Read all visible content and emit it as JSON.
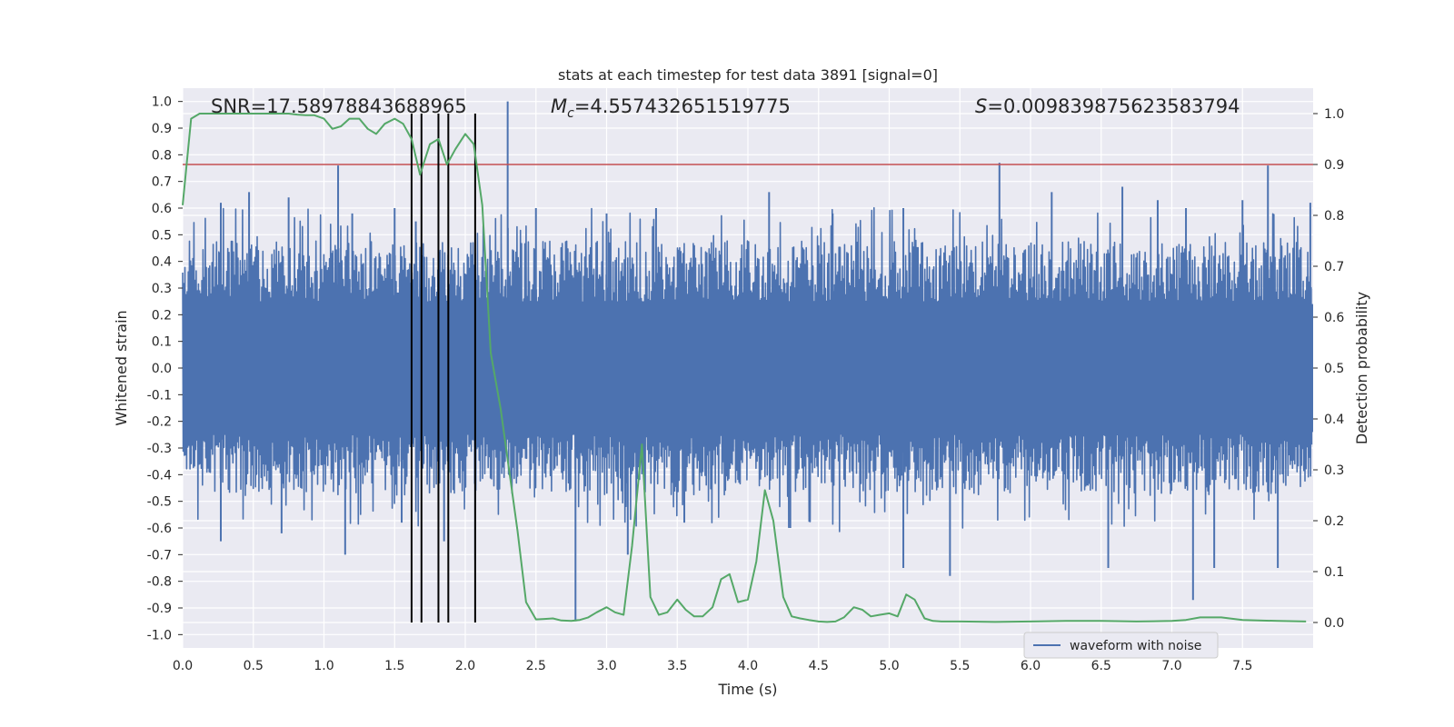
{
  "chart_data": {
    "type": "line",
    "title": "stats at each timestep for test data 3891 [signal=0]",
    "xlabel": "Time (s)",
    "ylabel": "Whitened strain",
    "y2label": "Detection probability",
    "xlim": [
      0.0,
      8.0
    ],
    "ylim": [
      -1.05,
      1.05
    ],
    "y2lim": [
      -0.05,
      1.05
    ],
    "xticks": [
      "0.0",
      "0.5",
      "1.0",
      "1.5",
      "2.0",
      "2.5",
      "3.0",
      "3.5",
      "4.0",
      "4.5",
      "5.0",
      "5.5",
      "6.0",
      "6.5",
      "7.0",
      "7.5"
    ],
    "yticks": [
      "1.0",
      "0.9",
      "0.8",
      "0.7",
      "0.6",
      "0.5",
      "0.4",
      "0.3",
      "0.2",
      "0.1",
      "0.0",
      "-0.1",
      "-0.2",
      "-0.3",
      "-0.4",
      "-0.5",
      "-0.6",
      "-0.7",
      "-0.8",
      "-0.9",
      "-1.0"
    ],
    "y2ticks": [
      "1.0",
      "0.9",
      "0.8",
      "0.7",
      "0.6",
      "0.5",
      "0.4",
      "0.3",
      "0.2",
      "0.1",
      "0.0"
    ],
    "grid": true,
    "legend_position": "bottom-right",
    "annotations": {
      "snr": "SNR=17.58978843688965",
      "mc_symbol": "M",
      "mc_sub": "c",
      "mc_value": "=4.557432651519775",
      "s_symbol": "S",
      "s_value": "=0.009839875623583794"
    },
    "threshold": {
      "y2": 0.9,
      "color": "#c44e52"
    },
    "vlines_x": [
      1.62,
      1.69,
      1.81,
      1.88,
      2.07
    ],
    "waveform": {
      "name": "waveform with noise",
      "color": "#4c72b0",
      "envelope_pos_typical": 0.45,
      "envelope_neg_typical": -0.45,
      "spikes": [
        [
          0.27,
          0.62
        ],
        [
          0.47,
          0.66
        ],
        [
          0.75,
          0.64
        ],
        [
          1.1,
          0.76
        ],
        [
          1.2,
          0.58
        ],
        [
          1.5,
          0.6
        ],
        [
          1.65,
          0.55
        ],
        [
          2.3,
          1.0
        ],
        [
          2.5,
          0.6
        ],
        [
          3.0,
          0.58
        ],
        [
          3.35,
          0.6
        ],
        [
          4.15,
          0.66
        ],
        [
          4.6,
          0.58
        ],
        [
          5.1,
          0.6
        ],
        [
          5.78,
          0.77
        ],
        [
          6.15,
          0.66
        ],
        [
          6.65,
          0.68
        ],
        [
          6.9,
          0.63
        ],
        [
          7.1,
          0.6
        ],
        [
          7.5,
          0.63
        ],
        [
          7.68,
          0.76
        ],
        [
          7.98,
          0.62
        ],
        [
          0.27,
          -0.65
        ],
        [
          0.7,
          -0.62
        ],
        [
          1.15,
          -0.7
        ],
        [
          1.55,
          -0.58
        ],
        [
          1.85,
          -0.65
        ],
        [
          2.07,
          -0.72
        ],
        [
          2.78,
          -0.95
        ],
        [
          3.15,
          -0.7
        ],
        [
          3.55,
          -0.58
        ],
        [
          4.3,
          -0.6
        ],
        [
          5.1,
          -0.75
        ],
        [
          5.43,
          -0.78
        ],
        [
          6.55,
          -0.75
        ],
        [
          7.15,
          -0.87
        ],
        [
          7.3,
          -0.75
        ],
        [
          7.75,
          -0.75
        ]
      ]
    },
    "probability": {
      "name": "detection probability",
      "color": "#55a868",
      "x": [
        0.0,
        0.06,
        0.12,
        0.18,
        0.25,
        0.31,
        0.37,
        0.43,
        0.5,
        0.56,
        0.62,
        0.68,
        0.75,
        0.81,
        0.87,
        0.93,
        1.0,
        1.06,
        1.12,
        1.18,
        1.25,
        1.31,
        1.37,
        1.43,
        1.5,
        1.56,
        1.62,
        1.68,
        1.75,
        1.81,
        1.87,
        1.93,
        2.0,
        2.06,
        2.12,
        2.18,
        2.25,
        2.31,
        2.37,
        2.43,
        2.5,
        2.56,
        2.62,
        2.68,
        2.75,
        2.81,
        2.87,
        2.93,
        3.0,
        3.06,
        3.12,
        3.18,
        3.25,
        3.31,
        3.37,
        3.43,
        3.5,
        3.56,
        3.62,
        3.68,
        3.75,
        3.81,
        3.87,
        3.93,
        4.0,
        4.06,
        4.12,
        4.18,
        4.25,
        4.31,
        4.37,
        4.43,
        4.5,
        4.56,
        4.62,
        4.68,
        4.75,
        4.81,
        4.87,
        4.93,
        5.0,
        5.06,
        5.12,
        5.18,
        5.25,
        5.31,
        5.37,
        5.5,
        5.75,
        6.0,
        6.25,
        6.5,
        6.75,
        7.0,
        7.1,
        7.2,
        7.35,
        7.5,
        7.75,
        7.95
      ],
      "y": [
        0.82,
        0.99,
        1.0,
        1.0,
        1.0,
        1.0,
        1.0,
        1.0,
        1.0,
        1.0,
        1.0,
        1.0,
        1.0,
        0.998,
        0.997,
        0.997,
        0.99,
        0.97,
        0.975,
        0.99,
        0.99,
        0.97,
        0.96,
        0.98,
        0.99,
        0.98,
        0.95,
        0.88,
        0.94,
        0.95,
        0.9,
        0.93,
        0.96,
        0.94,
        0.82,
        0.53,
        0.42,
        0.3,
        0.18,
        0.04,
        0.006,
        0.007,
        0.008,
        0.004,
        0.003,
        0.005,
        0.01,
        0.02,
        0.03,
        0.02,
        0.015,
        0.15,
        0.35,
        0.05,
        0.015,
        0.02,
        0.045,
        0.025,
        0.012,
        0.012,
        0.03,
        0.085,
        0.095,
        0.04,
        0.045,
        0.12,
        0.26,
        0.2,
        0.05,
        0.012,
        0.008,
        0.005,
        0.002,
        0.001,
        0.002,
        0.01,
        0.03,
        0.025,
        0.012,
        0.015,
        0.018,
        0.012,
        0.055,
        0.045,
        0.008,
        0.003,
        0.002,
        0.002,
        0.001,
        0.002,
        0.003,
        0.003,
        0.002,
        0.003,
        0.005,
        0.01,
        0.01,
        0.005,
        0.003,
        0.002
      ]
    }
  }
}
